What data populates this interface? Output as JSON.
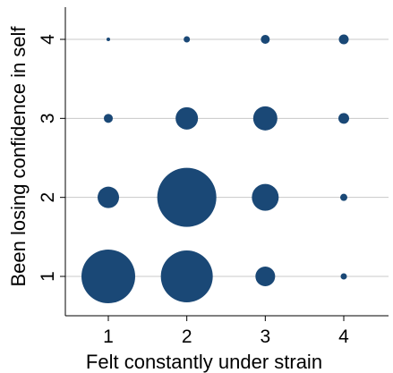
{
  "chart_data": {
    "type": "scatter",
    "subtype": "bubble",
    "title": "",
    "xlabel": "Felt constantly under strain",
    "ylabel": "Been losing confidence in self",
    "x_ticks": [
      "1",
      "2",
      "3",
      "4"
    ],
    "y_ticks": [
      "1",
      "2",
      "3",
      "4"
    ],
    "xlim": [
      0.55,
      4.6
    ],
    "ylim": [
      0.45,
      4.4
    ],
    "grid": "horizontal",
    "legend": "none",
    "color": "#1a4876",
    "grid_color": "#c8c8c8",
    "points": [
      {
        "x": 1,
        "y": 1,
        "size": 30
      },
      {
        "x": 2,
        "y": 1,
        "size": 29
      },
      {
        "x": 3,
        "y": 1,
        "size": 11
      },
      {
        "x": 4,
        "y": 1,
        "size": 3.5
      },
      {
        "x": 1,
        "y": 2,
        "size": 12
      },
      {
        "x": 2,
        "y": 2,
        "size": 33
      },
      {
        "x": 3,
        "y": 2,
        "size": 15
      },
      {
        "x": 4,
        "y": 2,
        "size": 4
      },
      {
        "x": 1,
        "y": 3,
        "size": 5
      },
      {
        "x": 2,
        "y": 3,
        "size": 12.5
      },
      {
        "x": 3,
        "y": 3,
        "size": 13.5
      },
      {
        "x": 4,
        "y": 3,
        "size": 6
      },
      {
        "x": 1,
        "y": 4,
        "size": 2
      },
      {
        "x": 2,
        "y": 4,
        "size": 3.5
      },
      {
        "x": 3,
        "y": 4,
        "size": 5
      },
      {
        "x": 4,
        "y": 4,
        "size": 5.5
      }
    ]
  }
}
